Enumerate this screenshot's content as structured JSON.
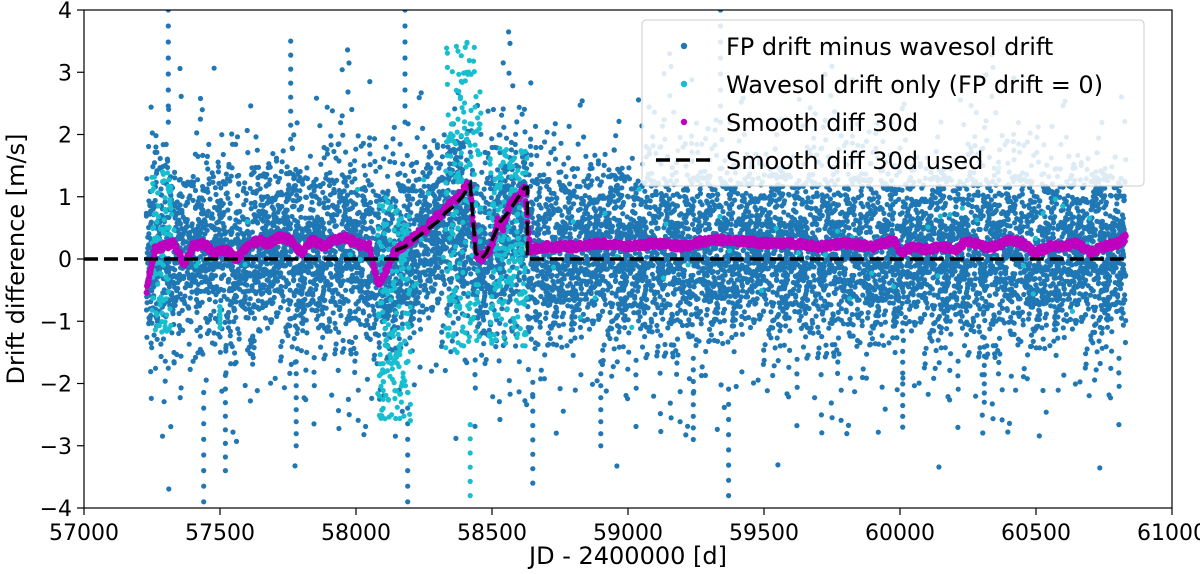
{
  "chart_data": {
    "type": "scatter",
    "xlabel": "JD - 2400000 [d]",
    "ylabel": "Drift difference [m/s]",
    "xlim": [
      57000,
      61000
    ],
    "ylim": [
      -4,
      4
    ],
    "xticks": [
      57000,
      57500,
      58000,
      58500,
      59000,
      59500,
      60000,
      60500,
      61000
    ],
    "yticks": [
      -4,
      -3,
      -2,
      -1,
      0,
      1,
      2,
      3,
      4
    ],
    "xtick_labels": [
      "57000",
      "57500",
      "58000",
      "58500",
      "59000",
      "59500",
      "60000",
      "60500",
      "61000"
    ],
    "ytick_labels": [
      "−4",
      "−3",
      "−2",
      "−1",
      "0",
      "1",
      "2",
      "3",
      "4"
    ],
    "grid": false,
    "legend_position": "top-right",
    "series": [
      {
        "name": "FP drift minus wavesol drift",
        "kind": "scatter",
        "color": "#1f77b4",
        "x_range": [
          57230,
          60830
        ],
        "typical_range": [
          -1.5,
          2.0
        ],
        "extreme_values": [
          {
            "x": 57310,
            "y": 4.0
          },
          {
            "x": 57440,
            "y": -3.9
          },
          {
            "x": 57520,
            "y": -3.4
          },
          {
            "x": 57760,
            "y": 3.5
          },
          {
            "x": 57780,
            "y": -3.0
          },
          {
            "x": 58180,
            "y": 4.0
          },
          {
            "x": 58190,
            "y": -3.9
          },
          {
            "x": 58650,
            "y": -3.6
          },
          {
            "x": 58900,
            "y": -3.0
          },
          {
            "x": 59240,
            "y": -2.9
          },
          {
            "x": 59340,
            "y": 4.0
          },
          {
            "x": 59370,
            "y": -3.8
          },
          {
            "x": 60010,
            "y": -2.7
          },
          {
            "x": 60310,
            "y": -2.3
          },
          {
            "x": 60720,
            "y": 1.4
          }
        ]
      },
      {
        "name": "Wavesol drift only (FP drift = 0)",
        "kind": "scatter",
        "color": "#17becf",
        "segments": [
          {
            "x": [
              57250,
              57320
            ],
            "y_range": [
              -1.2,
              1.5
            ]
          },
          {
            "x": [
              58080,
              58200
            ],
            "y_range": [
              -2.6,
              1.0
            ]
          },
          {
            "x": [
              58330,
              58460
            ],
            "y_range": [
              -1.5,
              3.5
            ]
          },
          {
            "x": [
              58490,
              58630
            ],
            "y_range": [
              -1.4,
              1.8
            ]
          }
        ],
        "extreme_values": [
          {
            "x": 58420,
            "y": -3.8
          },
          {
            "x": 58100,
            "y": -2.4
          },
          {
            "x": 57500,
            "y": -1.1
          }
        ]
      },
      {
        "name": "Smooth diff 30d",
        "kind": "line-markers",
        "color": "#bf00bf",
        "x": [
          57230,
          57260,
          57290,
          57330,
          57370,
          57400,
          57440,
          57480,
          57520,
          57560,
          57600,
          57640,
          57680,
          57720,
          57760,
          57800,
          57840,
          57880,
          57920,
          57960,
          58000,
          58050,
          58080,
          58110,
          58140,
          58170,
          58200,
          58230,
          58260,
          58290,
          58320,
          58350,
          58380,
          58400,
          58420,
          58440,
          58460,
          58480,
          58500,
          58520,
          58540,
          58560,
          58580,
          58600,
          58620,
          58640,
          58700,
          58800,
          58900,
          59000,
          59100,
          59200,
          59300,
          59400,
          59500,
          59600,
          59700,
          59800,
          59900,
          59980,
          60000,
          60050,
          60100,
          60150,
          60200,
          60250,
          60300,
          60350,
          60400,
          60450,
          60500,
          60550,
          60600,
          60650,
          60700,
          60750,
          60800,
          60830
        ],
        "y": [
          -0.5,
          0.15,
          0.2,
          0.25,
          -0.1,
          0.2,
          0.25,
          0.1,
          0.15,
          0.0,
          0.2,
          0.3,
          0.25,
          0.35,
          0.3,
          0.1,
          0.3,
          0.2,
          0.3,
          0.35,
          0.25,
          0.2,
          -0.4,
          -0.2,
          0.1,
          0.2,
          0.3,
          0.4,
          0.5,
          0.65,
          0.75,
          0.9,
          1.0,
          1.15,
          1.2,
          0.1,
          0.0,
          0.1,
          0.2,
          0.6,
          0.5,
          0.8,
          0.95,
          1.0,
          1.15,
          0.15,
          0.2,
          0.2,
          0.25,
          0.2,
          0.25,
          0.2,
          0.3,
          0.3,
          0.25,
          0.25,
          0.2,
          0.25,
          0.2,
          0.3,
          0.1,
          0.2,
          0.15,
          0.2,
          0.15,
          0.3,
          0.2,
          0.2,
          0.3,
          0.25,
          0.1,
          0.2,
          0.2,
          0.25,
          0.1,
          0.2,
          0.25,
          0.35
        ]
      },
      {
        "name": "Smooth diff 30d used",
        "kind": "dashed-line",
        "color": "#000000",
        "x": [
          57000,
          58150,
          58150,
          58180,
          58210,
          58240,
          58270,
          58300,
          58330,
          58360,
          58390,
          58420,
          58440,
          58460,
          58480,
          58500,
          58530,
          58560,
          58590,
          58620,
          58630,
          58630,
          60830
        ],
        "y": [
          0.0,
          0.0,
          0.15,
          0.2,
          0.3,
          0.4,
          0.5,
          0.6,
          0.75,
          0.85,
          1.0,
          1.2,
          0.1,
          0.0,
          0.1,
          0.3,
          0.6,
          0.75,
          0.95,
          1.15,
          1.15,
          0.0,
          0.0
        ]
      }
    ]
  }
}
